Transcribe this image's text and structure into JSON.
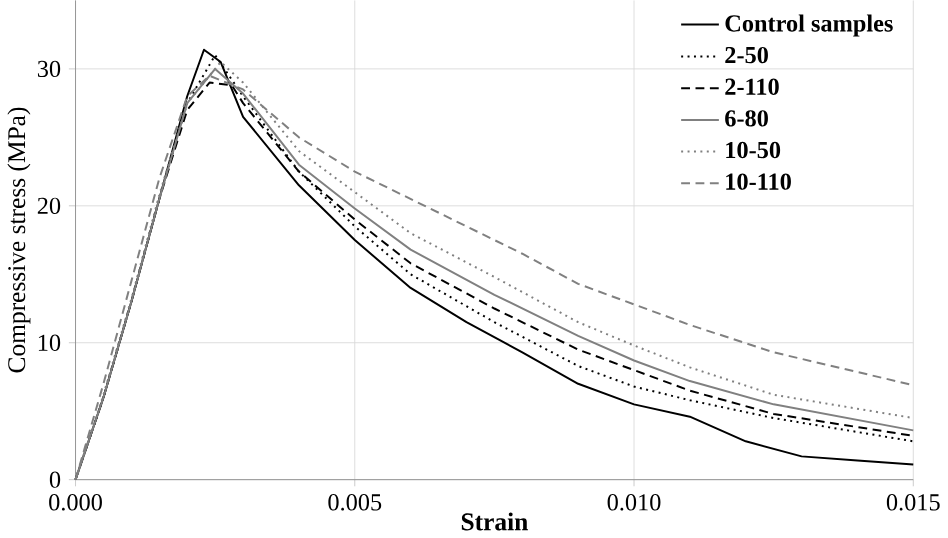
{
  "chart_data": {
    "type": "line",
    "xlabel": "Strain",
    "ylabel": "Compressive stress  (MPa)",
    "xlim": [
      0,
      0.015
    ],
    "ylim": [
      0,
      35
    ],
    "xticks": [
      {
        "value": 0,
        "label": "0.000"
      },
      {
        "value": 0.005,
        "label": "0.005"
      },
      {
        "value": 0.01,
        "label": "0.010"
      },
      {
        "value": 0.015,
        "label": "0.015"
      }
    ],
    "yticks": [
      0,
      10,
      20,
      30
    ],
    "grid": true,
    "legend": "top right",
    "marker": "none",
    "series": [
      {
        "name": "Control samples",
        "color": "#000000",
        "line_style": "solid",
        "x": [
          0,
          0.0005,
          0.001,
          0.0015,
          0.002,
          0.0023,
          0.0026,
          0.003,
          0.004,
          0.005,
          0.006,
          0.007,
          0.008,
          0.009,
          0.01,
          0.011,
          0.012,
          0.013,
          0.014,
          0.015
        ],
        "values": [
          0,
          6,
          13,
          20.5,
          28,
          31.4,
          30.5,
          26.5,
          21.5,
          17.5,
          14,
          11.5,
          9.3,
          7,
          5.5,
          4.6,
          2.8,
          1.7,
          1.4,
          1.1
        ]
      },
      {
        "name": "2-50",
        "color": "#000000",
        "line_style": "dotted",
        "x": [
          0,
          0.0005,
          0.001,
          0.0015,
          0.002,
          0.0025,
          0.003,
          0.004,
          0.005,
          0.006,
          0.0075,
          0.009,
          0.01,
          0.011,
          0.0125,
          0.015
        ],
        "values": [
          0,
          6,
          13,
          20.5,
          27.5,
          31,
          28,
          22.5,
          18.5,
          15,
          11.5,
          8.3,
          6.8,
          5.8,
          4.5,
          2.8
        ]
      },
      {
        "name": "2-110",
        "color": "#000000",
        "line_style": "dashed",
        "x": [
          0,
          0.0005,
          0.001,
          0.0015,
          0.002,
          0.0024,
          0.0028,
          0.003,
          0.004,
          0.005,
          0.006,
          0.0075,
          0.009,
          0.01,
          0.011,
          0.0125,
          0.015
        ],
        "values": [
          0,
          6,
          13,
          20.5,
          27,
          29,
          28.8,
          27.5,
          22.5,
          19,
          15.8,
          12.5,
          9.5,
          8,
          6.5,
          4.8,
          3.2
        ]
      },
      {
        "name": "6-80",
        "color": "#808080",
        "line_style": "solid",
        "x": [
          0,
          0.0005,
          0.001,
          0.0015,
          0.002,
          0.0025,
          0.003,
          0.004,
          0.005,
          0.006,
          0.0075,
          0.009,
          0.01,
          0.011,
          0.0125,
          0.015
        ],
        "values": [
          0,
          6,
          13,
          20.5,
          27.5,
          30,
          28.2,
          23,
          19.8,
          16.8,
          13.5,
          10.5,
          8.7,
          7.2,
          5.5,
          3.6
        ]
      },
      {
        "name": "10-50",
        "color": "#808080",
        "line_style": "dotted",
        "x": [
          0,
          0.0005,
          0.001,
          0.0015,
          0.002,
          0.0026,
          0.003,
          0.004,
          0.005,
          0.006,
          0.0075,
          0.009,
          0.01,
          0.011,
          0.0125,
          0.015
        ],
        "values": [
          0,
          6.2,
          13.2,
          20.8,
          27.5,
          30.5,
          29,
          24,
          21,
          18,
          14.8,
          11.5,
          9.8,
          8.2,
          6.2,
          4.5
        ]
      },
      {
        "name": "10-110",
        "color": "#808080",
        "line_style": "dashed",
        "x": [
          0,
          0.0005,
          0.001,
          0.0015,
          0.002,
          0.0024,
          0.003,
          0.004,
          0.005,
          0.0065,
          0.008,
          0.009,
          0.01,
          0.011,
          0.0125,
          0.015
        ],
        "values": [
          0,
          7,
          14.5,
          22,
          28,
          29.5,
          28.5,
          25,
          22.5,
          19.5,
          16.5,
          14.3,
          12.8,
          11.3,
          9.3,
          6.9
        ]
      }
    ]
  }
}
